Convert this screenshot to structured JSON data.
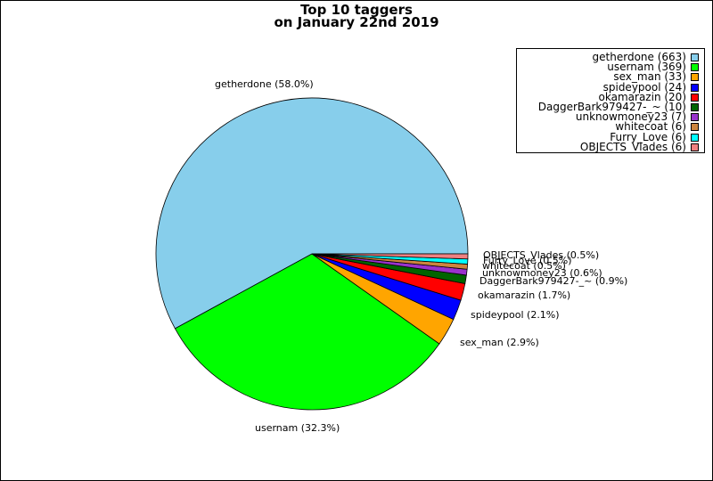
{
  "chart_data": {
    "type": "pie",
    "title": "Top 10 taggers",
    "subtitle": "on January 22nd 2019",
    "series": [
      {
        "name": "getherdone",
        "value": 663,
        "color": "#87ceeb",
        "legend": "getherdone (663)",
        "label": "getherdone (58.0%)"
      },
      {
        "name": "usernam",
        "value": 369,
        "color": "#00ff00",
        "legend": "usernam (369)",
        "label": "usernam (32.3%)"
      },
      {
        "name": "sex_man",
        "value": 33,
        "color": "#ffa500",
        "legend": "sex_man (33)",
        "label": "sex_man (2.9%)"
      },
      {
        "name": "spideypool",
        "value": 24,
        "color": "#0000ff",
        "legend": "spideypool (24)",
        "label": "spideypool (2.1%)"
      },
      {
        "name": "okamarazin",
        "value": 20,
        "color": "#ff0000",
        "legend": "okamarazin (20)",
        "label": "okamarazin (1.7%)"
      },
      {
        "name": "DaggerBark979427-_~",
        "value": 10,
        "color": "#006400",
        "legend": "DaggerBark979427-_~ (10)",
        "label": "DaggerBark979427-_~ (0.9%)"
      },
      {
        "name": "unknowmoney23",
        "value": 7,
        "color": "#9932cc",
        "legend": "unknowmoney23 (7)",
        "label": "unknowmoney23 (0.6%)"
      },
      {
        "name": "whitecoat",
        "value": 6,
        "color": "#cd853f",
        "legend": "whitecoat (6)",
        "label": "whitecoat (0.5%)"
      },
      {
        "name": "Furry_Love",
        "value": 6,
        "color": "#00ffff",
        "legend": "Furry_Love (6)",
        "label": "Furry_Love (0.5%)"
      },
      {
        "name": "OBJECTS_Vlades",
        "value": 6,
        "color": "#f08080",
        "legend": "OBJECTS_Vlades (6)",
        "label": "OBJECTS_Vlades (0.5%)"
      }
    ],
    "legend_position": "top-right",
    "start_angle_deg": 0,
    "direction": "counterclockwise"
  }
}
